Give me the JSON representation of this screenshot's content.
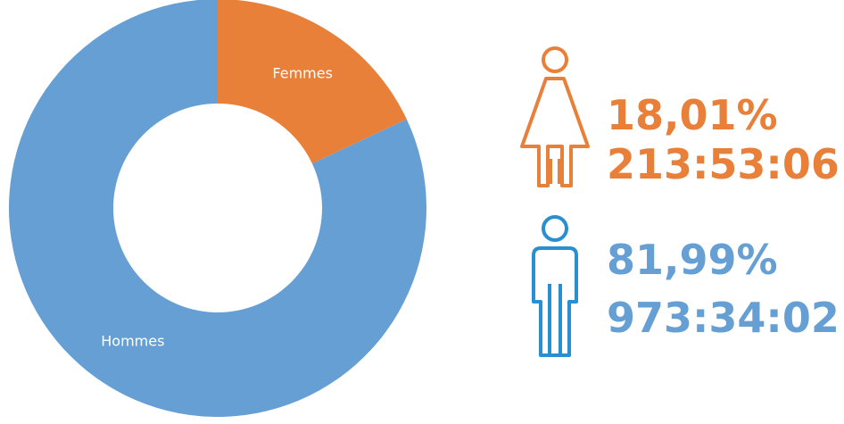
{
  "chart_data": {
    "type": "donut",
    "categories": [
      "Femmes",
      "Hommes"
    ],
    "values": [
      18.01,
      81.99
    ],
    "value_labels": [
      "18,01%",
      "81,99%"
    ],
    "durations": [
      "213:53:06",
      "973:34:02"
    ],
    "colors": [
      "#e8803a",
      "#659fd4"
    ],
    "icon_colors": [
      "#e8803a",
      "#2a8fd0"
    ]
  }
}
